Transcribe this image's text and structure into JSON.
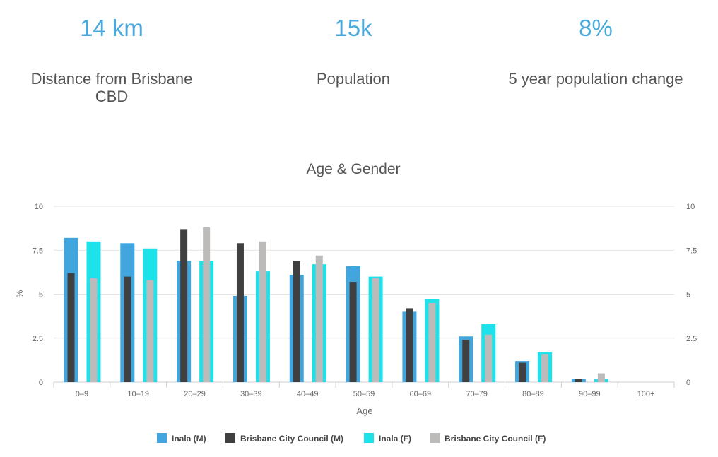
{
  "stats": [
    {
      "value": "14 km",
      "label": "Distance from Brisbane CBD"
    },
    {
      "value": "15k",
      "label": "Population"
    },
    {
      "value": "8%",
      "label": "5 year population change"
    }
  ],
  "colors": {
    "inala_m": "#41a6dd",
    "bcc_m": "#404040",
    "inala_f": "#1ee2ea",
    "bcc_f": "#bdbaba",
    "stat_accent": "#4aa9dc"
  },
  "chart_data": {
    "type": "bar",
    "title": "Age & Gender",
    "xlabel": "Age",
    "ylabel": "%",
    "ylim": [
      0,
      10
    ],
    "yticks": [
      0,
      2.5,
      5,
      7.5,
      10
    ],
    "ytick_labels": [
      "0",
      "2.5",
      "5",
      "7.5",
      "10"
    ],
    "categories": [
      "0–9",
      "10–19",
      "20–29",
      "30–39",
      "40–49",
      "50–59",
      "60–69",
      "70–79",
      "80–89",
      "90–99",
      "100+"
    ],
    "series": [
      {
        "name": "Inala (M)",
        "values": [
          8.2,
          7.9,
          6.9,
          4.9,
          6.1,
          6.6,
          4.0,
          2.6,
          1.2,
          0.2,
          0
        ]
      },
      {
        "name": "Brisbane City Council (M)",
        "values": [
          6.2,
          6.0,
          8.7,
          7.9,
          6.9,
          5.7,
          4.2,
          2.4,
          1.1,
          0.2,
          0
        ]
      },
      {
        "name": "Inala (F)",
        "values": [
          8.0,
          7.6,
          6.9,
          6.3,
          6.7,
          6.0,
          4.7,
          3.3,
          1.7,
          0.2,
          0
        ]
      },
      {
        "name": "Brisbane City Council (F)",
        "values": [
          5.9,
          5.8,
          8.8,
          8.0,
          7.2,
          5.9,
          4.5,
          2.7,
          1.6,
          0.5,
          0
        ]
      }
    ],
    "legend_position": "bottom"
  }
}
